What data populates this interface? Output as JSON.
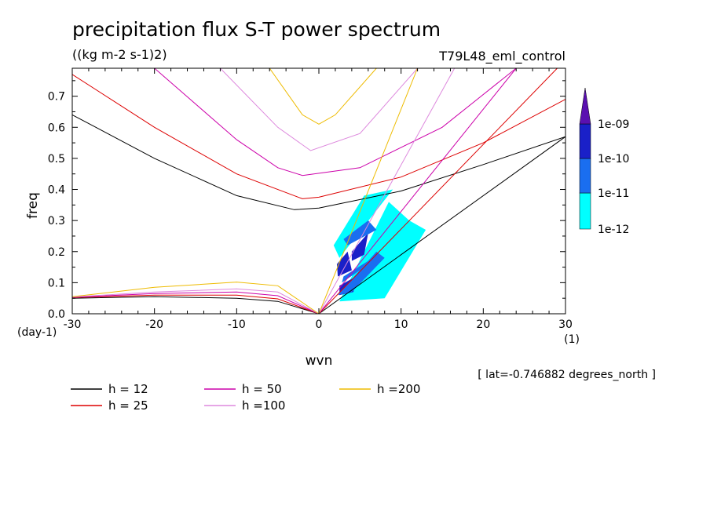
{
  "chart_data": {
    "type": "line",
    "title": "precipitation flux S-T power spectrum",
    "subtitle": "((kg m-2 s-1)2)",
    "run_label": "T79L48_eml_control",
    "xlabel": "wvn",
    "ylabel": "freq",
    "x_unit": "(1)",
    "y_unit": "(day-1)",
    "xlim": [
      -30,
      30
    ],
    "ylim": [
      0,
      0.79
    ],
    "x_ticks": [
      -30,
      -20,
      -10,
      0,
      10,
      20,
      30
    ],
    "x_tick_labels": [
      "-30",
      "-20",
      "-10",
      "0",
      "10",
      "20",
      "30"
    ],
    "y_ticks": [
      0,
      0.1,
      0.2,
      0.3,
      0.4,
      0.5,
      0.6,
      0.7
    ],
    "y_tick_labels": [
      "0.0",
      "0.1",
      "0.2",
      "0.3",
      "0.4",
      "0.5",
      "0.6",
      "0.7"
    ],
    "annotation": "[ lat=-0.746882 degrees_north ]",
    "legend": [
      {
        "label": "h = 12",
        "color": "#000000"
      },
      {
        "label": "h = 25",
        "color": "#dd0000"
      },
      {
        "label": "h = 50",
        "color": "#cc00aa"
      },
      {
        "label": "h =100",
        "color": "#dd88dd"
      },
      {
        "label": "h =200",
        "color": "#eebb00"
      }
    ],
    "dispersion_curves": {
      "h_12": {
        "color": "#000000",
        "n1_wave": {
          "x": [
            -30,
            -20,
            -10,
            -3,
            0,
            10,
            20,
            30
          ],
          "y": [
            0.64,
            0.5,
            0.38,
            0.335,
            0.34,
            0.395,
            0.48,
            0.57
          ]
        },
        "low_branch": {
          "x": [
            -30,
            -20,
            -10,
            -5,
            0
          ],
          "y": [
            0.05,
            0.055,
            0.05,
            0.04,
            0.0
          ]
        },
        "kelvin": {
          "x": [
            0,
            30
          ],
          "y": [
            0,
            0.57
          ]
        }
      },
      "h_25": {
        "color": "#dd0000",
        "n1_wave": {
          "x": [
            -30,
            -20,
            -10,
            -2,
            0,
            10,
            20,
            30
          ],
          "y": [
            0.77,
            0.6,
            0.45,
            0.37,
            0.375,
            0.44,
            0.55,
            0.69
          ]
        },
        "low_branch": {
          "x": [
            -30,
            -20,
            -10,
            -5,
            0
          ],
          "y": [
            0.052,
            0.06,
            0.06,
            0.048,
            0.0
          ]
        },
        "kelvin": {
          "x": [
            0,
            29
          ],
          "y": [
            0,
            0.79
          ]
        }
      },
      "h_50": {
        "color": "#cc00aa",
        "n1_wave": {
          "x": [
            -20,
            -10,
            -5,
            -2,
            5,
            15,
            24
          ],
          "y": [
            0.79,
            0.56,
            0.47,
            0.445,
            0.47,
            0.6,
            0.79
          ]
        },
        "low_branch": {
          "x": [
            -30,
            -20,
            -10,
            -5,
            0
          ],
          "y": [
            0.053,
            0.065,
            0.07,
            0.058,
            0.0
          ]
        },
        "kelvin": {
          "x": [
            0,
            24
          ],
          "y": [
            0,
            0.79
          ]
        }
      },
      "h_100": {
        "color": "#dd88dd",
        "n1_wave": {
          "x": [
            -12,
            -5,
            -1,
            5,
            12
          ],
          "y": [
            0.79,
            0.6,
            0.525,
            0.58,
            0.79
          ]
        },
        "low_branch": {
          "x": [
            -30,
            -20,
            -10,
            -5,
            0
          ],
          "y": [
            0.054,
            0.07,
            0.08,
            0.07,
            0.0
          ]
        },
        "kelvin": {
          "x": [
            0,
            16.5
          ],
          "y": [
            0,
            0.79
          ]
        }
      },
      "h_200": {
        "color": "#eebb00",
        "n1_wave": {
          "x": [
            -6,
            -2,
            0,
            2,
            7
          ],
          "y": [
            0.79,
            0.64,
            0.61,
            0.64,
            0.79
          ]
        },
        "low_branch": {
          "x": [
            -30,
            -20,
            -10,
            -5,
            0
          ],
          "y": [
            0.055,
            0.085,
            0.102,
            0.09,
            0.0
          ]
        },
        "kelvin": {
          "x": [
            0,
            12
          ],
          "y": [
            0,
            0.79
          ]
        }
      }
    },
    "spectrum_contours": {
      "levels": [
        "1e-12",
        "1e-11",
        "1e-10",
        "1e-09"
      ],
      "colorbar_labels": [
        "1e-09",
        "1e-10",
        "1e-11",
        "1e-12"
      ],
      "colors": [
        "#00ffff",
        "#1a6ef0",
        "#1a20c8",
        "#5a10b0"
      ],
      "regions": [
        {
          "level": "1e-12",
          "x": [
            2.5,
            8.5,
            11,
            13,
            8,
            2.5
          ],
          "y": [
            0.04,
            0.36,
            0.3,
            0.27,
            0.05,
            0.04
          ]
        },
        {
          "level": "1e-12",
          "x": [
            2.5,
            9,
            5.5,
            1.8
          ],
          "y": [
            0.18,
            0.4,
            0.38,
            0.22
          ]
        },
        {
          "level": "1e-12",
          "x": [
            6,
            9,
            10,
            7
          ],
          "y": [
            0.18,
            0.27,
            0.25,
            0.18
          ]
        },
        {
          "level": "1e-10",
          "x": [
            2.2,
            3.5,
            4,
            2.3
          ],
          "y": [
            0.16,
            0.2,
            0.14,
            0.12
          ]
        },
        {
          "level": "1e-10",
          "x": [
            4,
            6,
            5.5,
            4
          ],
          "y": [
            0.2,
            0.26,
            0.19,
            0.17
          ]
        },
        {
          "level": "1e-10",
          "x": [
            2.5,
            4.5,
            4.2,
            2.5
          ],
          "y": [
            0.09,
            0.12,
            0.07,
            0.06
          ]
        },
        {
          "level": "1e-11",
          "x": [
            2.3,
            7,
            8,
            4,
            2.3
          ],
          "y": [
            0.06,
            0.2,
            0.18,
            0.07,
            0.06
          ]
        },
        {
          "level": "1e-11",
          "x": [
            3,
            6,
            7,
            3.5
          ],
          "y": [
            0.24,
            0.3,
            0.27,
            0.22
          ]
        },
        {
          "level": "1e-11",
          "x": [
            3,
            6,
            5,
            2.8
          ],
          "y": [
            0.12,
            0.17,
            0.14,
            0.1
          ]
        }
      ]
    }
  }
}
